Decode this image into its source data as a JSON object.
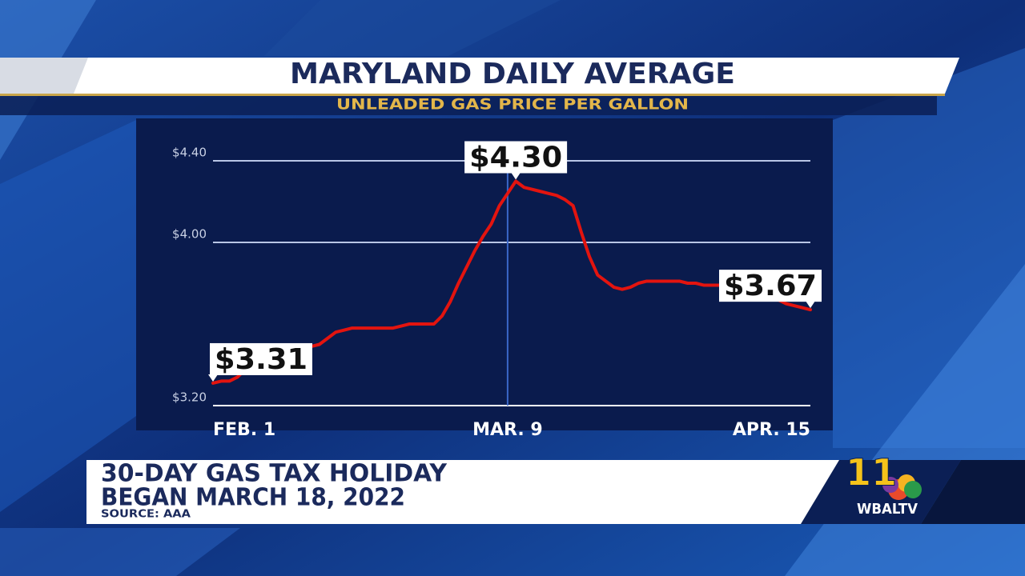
{
  "chart_data": {
    "type": "line",
    "title": "MARYLAND DAILY AVERAGE",
    "subtitle": "UNLEADED GAS PRICE PER GALLON",
    "categories": [
      "FEB. 1",
      null,
      null,
      null,
      null,
      null,
      null,
      null,
      null,
      null,
      null,
      null,
      null,
      null,
      null,
      null,
      null,
      null,
      null,
      null,
      null,
      null,
      null,
      null,
      null,
      null,
      null,
      null,
      null,
      null,
      null,
      null,
      null,
      null,
      null,
      null,
      "MAR. 9",
      null,
      null,
      null,
      null,
      null,
      null,
      null,
      null,
      null,
      null,
      null,
      null,
      null,
      null,
      null,
      null,
      null,
      null,
      null,
      null,
      null,
      null,
      null,
      null,
      null,
      null,
      null,
      null,
      null,
      null,
      null,
      null,
      null,
      null,
      null,
      null,
      "APR. 15"
    ],
    "values": [
      3.31,
      3.32,
      3.32,
      3.34,
      3.38,
      3.41,
      3.43,
      3.45,
      3.46,
      3.47,
      3.48,
      3.49,
      3.49,
      3.5,
      3.53,
      3.56,
      3.57,
      3.58,
      3.58,
      3.58,
      3.58,
      3.58,
      3.58,
      3.59,
      3.6,
      3.6,
      3.6,
      3.6,
      3.64,
      3.71,
      3.8,
      3.88,
      3.96,
      4.03,
      4.09,
      4.18,
      4.24,
      4.3,
      4.27,
      4.26,
      4.25,
      4.24,
      4.23,
      4.21,
      4.18,
      4.05,
      3.93,
      3.84,
      3.81,
      3.78,
      3.77,
      3.78,
      3.8,
      3.81,
      3.81,
      3.81,
      3.81,
      3.81,
      3.8,
      3.8,
      3.79,
      3.79,
      3.79,
      3.78,
      3.78,
      3.78,
      3.77,
      3.76,
      3.74,
      3.72,
      3.7,
      3.69,
      3.68,
      3.67
    ],
    "value_labels": [
      "$3.31",
      null,
      null,
      null,
      null,
      null,
      null,
      null,
      null,
      null,
      null,
      null,
      null,
      null,
      null,
      null,
      null,
      null,
      null,
      null,
      null,
      null,
      null,
      null,
      null,
      null,
      null,
      null,
      null,
      null,
      null,
      null,
      null,
      null,
      null,
      null,
      null,
      "$4.30",
      null,
      null,
      null,
      null,
      null,
      null,
      null,
      null,
      null,
      null,
      null,
      null,
      null,
      null,
      null,
      null,
      null,
      null,
      null,
      null,
      null,
      null,
      null,
      null,
      null,
      null,
      null,
      null,
      null,
      null,
      null,
      null,
      null,
      null,
      null,
      "$3.67"
    ],
    "color": "#e3140f",
    "ylim": [
      3.2,
      4.4
    ],
    "yticks": [
      {
        "value": 3.2,
        "label": "$3.20"
      },
      {
        "value": 4.0,
        "label": "$4.00"
      },
      {
        "value": 4.4,
        "label": "$4.40"
      }
    ],
    "grid": true
  },
  "lower_third": {
    "lines": [
      "30-DAY GAS TAX HOLIDAY",
      "BEGAN MARCH 18, 2022"
    ],
    "source": "SOURCE: AAA"
  },
  "logo": {
    "channel": "11",
    "station": "WBALTV"
  }
}
